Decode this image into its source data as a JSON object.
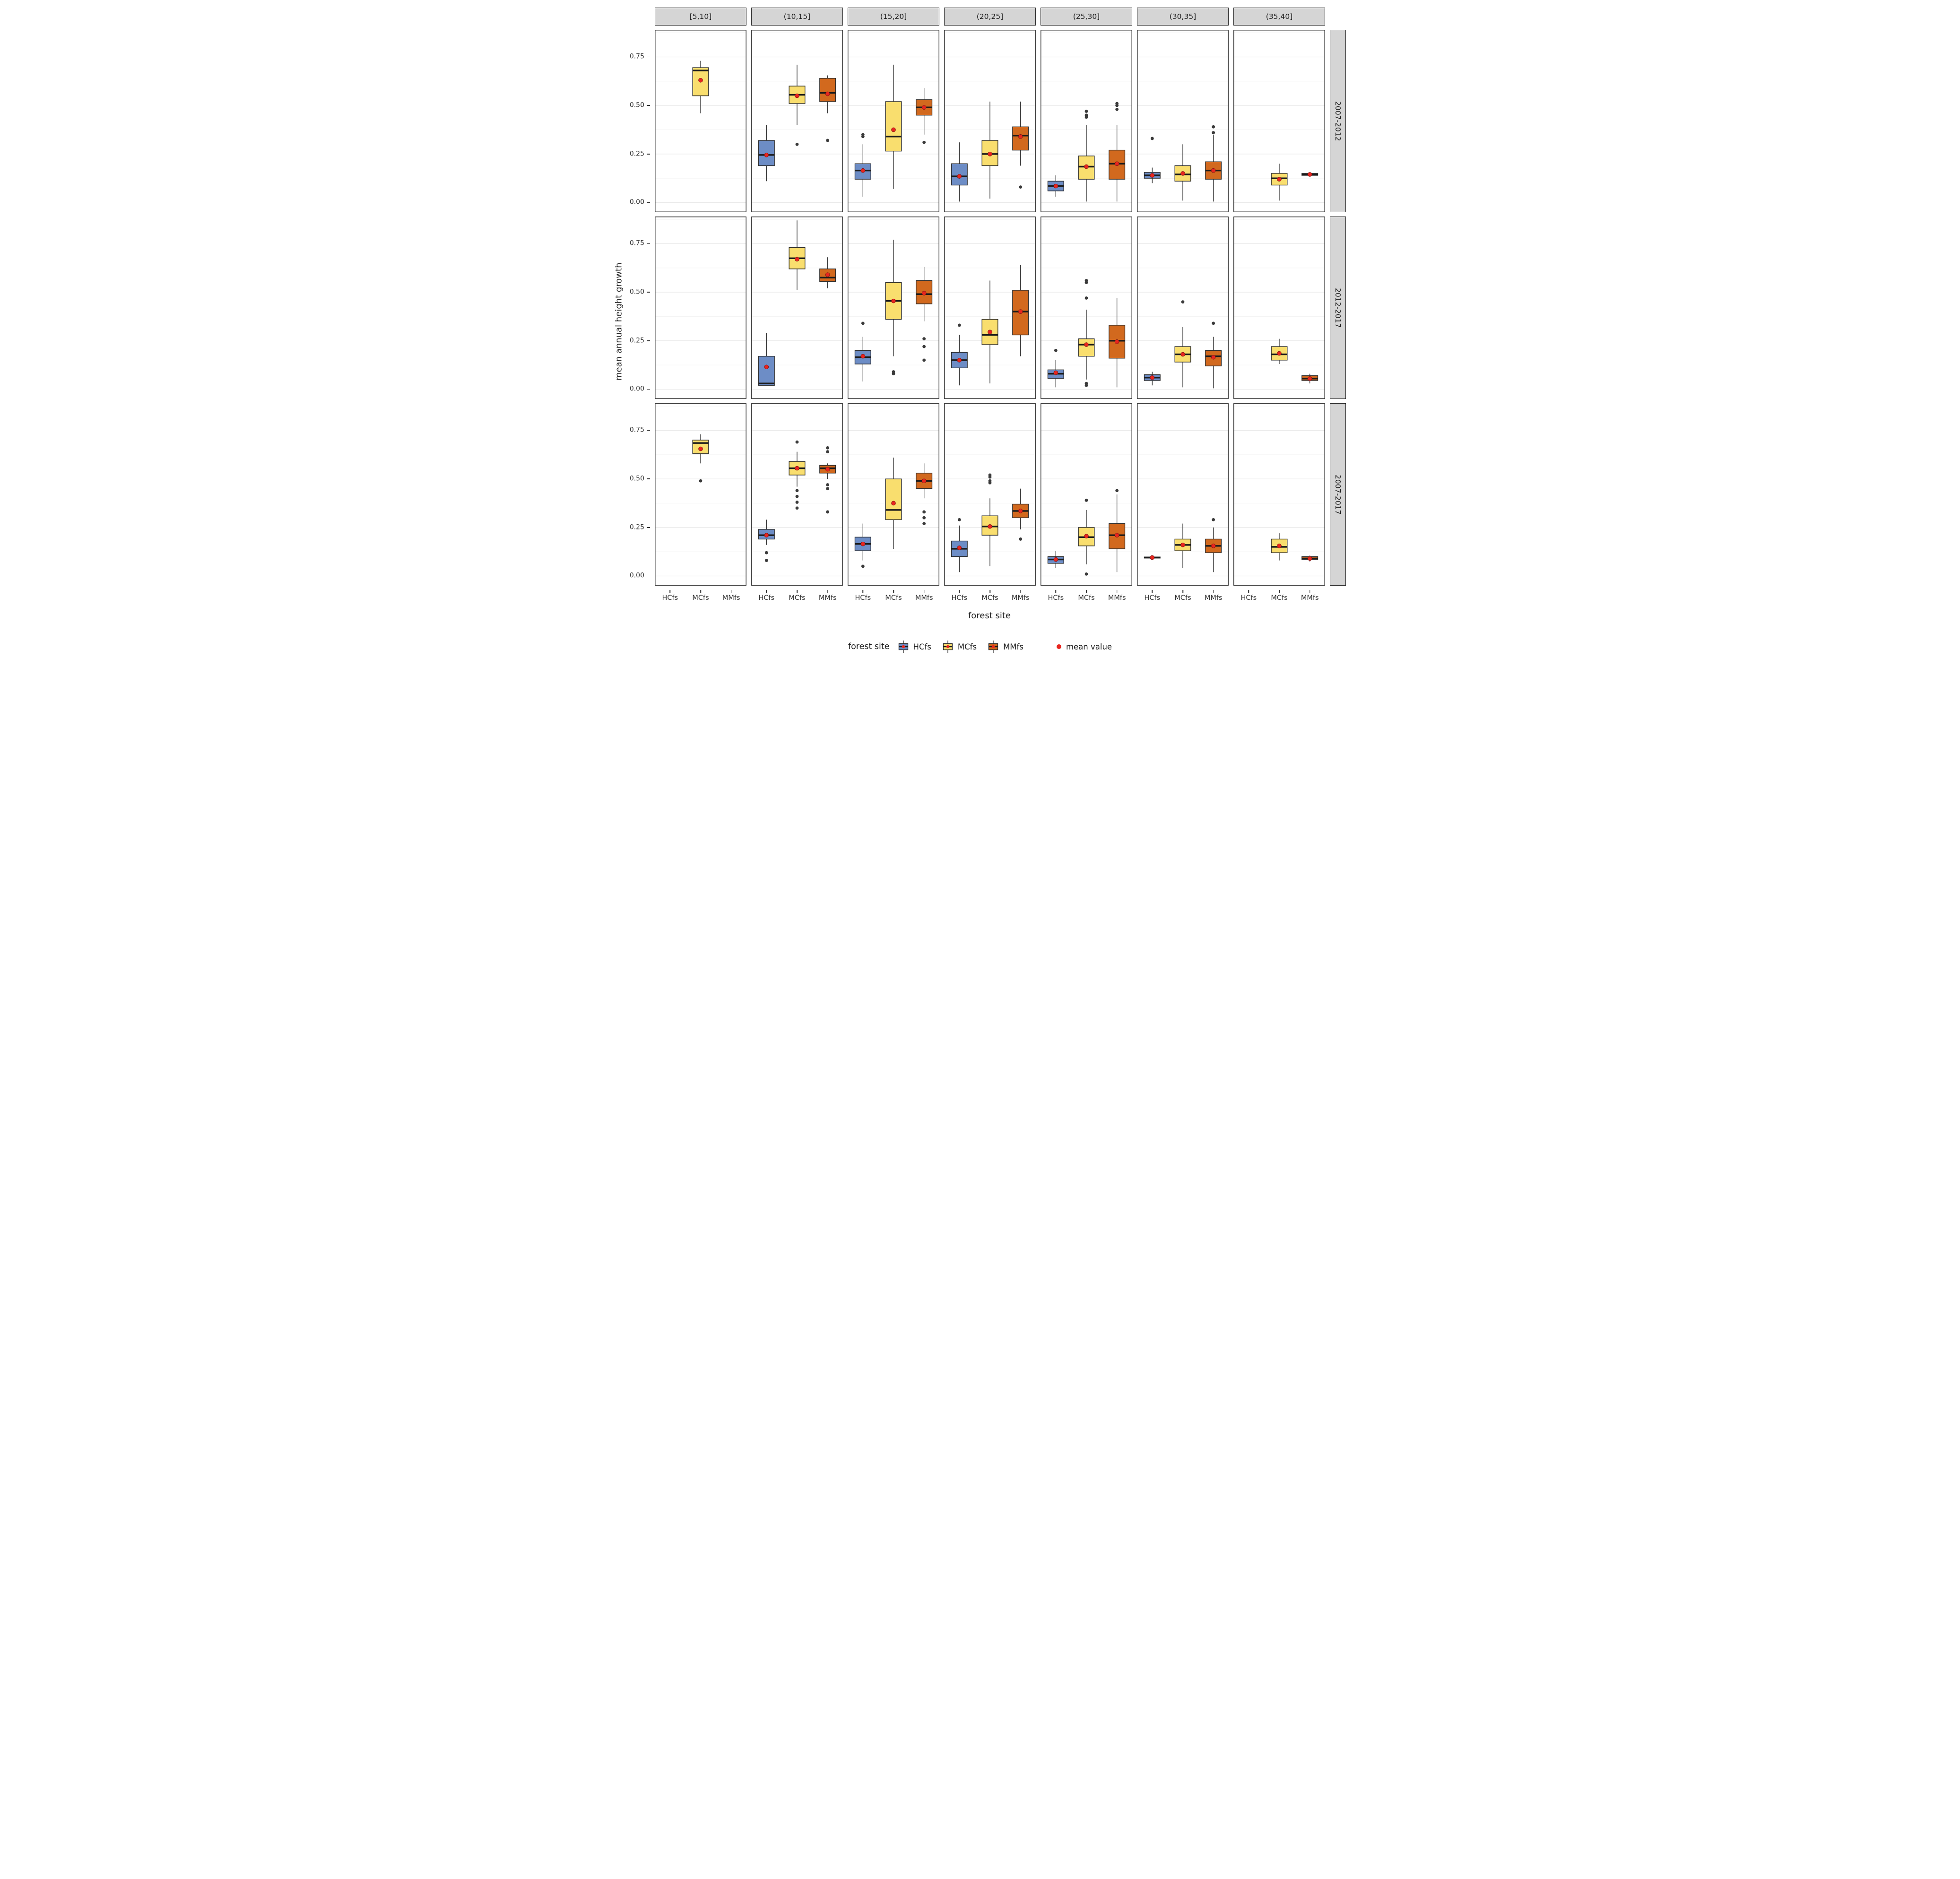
{
  "axes": {
    "y_label": "mean annual height growth",
    "x_label": "forest site",
    "y_ticks": [
      "0.00",
      "0.25",
      "0.50",
      "0.75"
    ],
    "x_categories": [
      "HCfs",
      "MCfs",
      "MMfs"
    ]
  },
  "facets": {
    "columns": [
      "[5,10]",
      "(10,15]",
      "(15,20]",
      "(20,25]",
      "(25,30]",
      "(30,35]",
      "(35,40]"
    ],
    "rows": [
      "2007-2012",
      "2012-2017",
      "2007-2017"
    ]
  },
  "legend": {
    "title": "forest site",
    "items": [
      {
        "label": "HCfs"
      },
      {
        "label": "MCfs"
      },
      {
        "label": "MMfs"
      }
    ],
    "mean_label": "mean value"
  },
  "colors": {
    "HCfs": "#6d8dc6",
    "MCfs": "#f9de6e",
    "MMfs": "#d2691e",
    "mean": "#e8251f",
    "outlier": "#3a3a3a",
    "strip_bg": "#d5d5d5",
    "panel_border": "#2b2b2b",
    "grid_major": "#e9e9e9",
    "grid_minor": "#f4f4f4"
  },
  "chart_data": {
    "type": "boxplot-facets",
    "y_domain": [
      -0.05,
      0.89
    ],
    "groups": [
      "HCfs",
      "MCfs",
      "MMfs"
    ],
    "panels": [
      {
        "row": 0,
        "col": 0,
        "boxes": [
          {
            "group": "MCfs",
            "low": 0.46,
            "q1": 0.55,
            "median": 0.68,
            "q3": 0.695,
            "high": 0.73,
            "mean": 0.63,
            "outliers": []
          }
        ]
      },
      {
        "row": 0,
        "col": 1,
        "boxes": [
          {
            "group": "HCfs",
            "low": 0.11,
            "q1": 0.19,
            "median": 0.245,
            "q3": 0.32,
            "high": 0.4,
            "mean": 0.245,
            "outliers": []
          },
          {
            "group": "MCfs",
            "low": 0.4,
            "q1": 0.51,
            "median": 0.555,
            "q3": 0.6,
            "high": 0.71,
            "mean": 0.55,
            "outliers": [
              0.3
            ]
          },
          {
            "group": "MMfs",
            "low": 0.46,
            "q1": 0.52,
            "median": 0.565,
            "q3": 0.64,
            "high": 0.655,
            "mean": 0.56,
            "outliers": [
              0.32
            ]
          }
        ]
      },
      {
        "row": 0,
        "col": 2,
        "boxes": [
          {
            "group": "HCfs",
            "low": 0.03,
            "q1": 0.12,
            "median": 0.165,
            "q3": 0.2,
            "high": 0.3,
            "mean": 0.165,
            "outliers": [
              0.35,
              0.34
            ]
          },
          {
            "group": "MCfs",
            "low": 0.07,
            "q1": 0.265,
            "median": 0.34,
            "q3": 0.52,
            "high": 0.71,
            "mean": 0.375,
            "outliers": []
          },
          {
            "group": "MMfs",
            "low": 0.35,
            "q1": 0.45,
            "median": 0.49,
            "q3": 0.53,
            "high": 0.59,
            "mean": 0.49,
            "outliers": [
              0.31
            ]
          }
        ]
      },
      {
        "row": 0,
        "col": 3,
        "boxes": [
          {
            "group": "HCfs",
            "low": 0.005,
            "q1": 0.09,
            "median": 0.135,
            "q3": 0.2,
            "high": 0.31,
            "mean": 0.135,
            "outliers": []
          },
          {
            "group": "MCfs",
            "low": 0.02,
            "q1": 0.19,
            "median": 0.25,
            "q3": 0.32,
            "high": 0.52,
            "mean": 0.25,
            "outliers": []
          },
          {
            "group": "MMfs",
            "low": 0.19,
            "q1": 0.27,
            "median": 0.345,
            "q3": 0.39,
            "high": 0.52,
            "mean": 0.34,
            "outliers": [
              0.08
            ]
          }
        ]
      },
      {
        "row": 0,
        "col": 4,
        "boxes": [
          {
            "group": "HCfs",
            "low": 0.03,
            "q1": 0.06,
            "median": 0.085,
            "q3": 0.11,
            "high": 0.14,
            "mean": 0.085,
            "outliers": []
          },
          {
            "group": "MCfs",
            "low": 0.005,
            "q1": 0.12,
            "median": 0.185,
            "q3": 0.24,
            "high": 0.4,
            "mean": 0.185,
            "outliers": [
              0.44,
              0.45,
              0.47
            ]
          },
          {
            "group": "MMfs",
            "low": 0.005,
            "q1": 0.12,
            "median": 0.2,
            "q3": 0.27,
            "high": 0.4,
            "mean": 0.2,
            "outliers": [
              0.48,
              0.5,
              0.51
            ]
          }
        ]
      },
      {
        "row": 0,
        "col": 5,
        "boxes": [
          {
            "group": "HCfs",
            "low": 0.1,
            "q1": 0.125,
            "median": 0.14,
            "q3": 0.155,
            "high": 0.18,
            "mean": 0.14,
            "outliers": [
              0.33
            ]
          },
          {
            "group": "MCfs",
            "low": 0.01,
            "q1": 0.11,
            "median": 0.145,
            "q3": 0.19,
            "high": 0.3,
            "mean": 0.15,
            "outliers": []
          },
          {
            "group": "MMfs",
            "low": 0.005,
            "q1": 0.12,
            "median": 0.165,
            "q3": 0.21,
            "high": 0.35,
            "mean": 0.165,
            "outliers": [
              0.36,
              0.39
            ]
          }
        ]
      },
      {
        "row": 0,
        "col": 6,
        "boxes": [
          {
            "group": "MCfs",
            "low": 0.01,
            "q1": 0.09,
            "median": 0.125,
            "q3": 0.15,
            "high": 0.2,
            "mean": 0.12,
            "outliers": []
          },
          {
            "group": "MMfs",
            "low": 0.135,
            "q1": 0.14,
            "median": 0.145,
            "q3": 0.15,
            "high": 0.155,
            "mean": 0.145,
            "outliers": []
          }
        ]
      },
      {
        "row": 1,
        "col": 0,
        "boxes": []
      },
      {
        "row": 1,
        "col": 1,
        "boxes": [
          {
            "group": "HCfs",
            "low": 0.02,
            "q1": 0.02,
            "median": 0.03,
            "q3": 0.17,
            "high": 0.29,
            "mean": 0.115,
            "outliers": []
          },
          {
            "group": "MCfs",
            "low": 0.51,
            "q1": 0.62,
            "median": 0.675,
            "q3": 0.73,
            "high": 0.87,
            "mean": 0.67,
            "outliers": []
          },
          {
            "group": "MMfs",
            "low": 0.52,
            "q1": 0.555,
            "median": 0.575,
            "q3": 0.62,
            "high": 0.68,
            "mean": 0.59,
            "outliers": []
          }
        ]
      },
      {
        "row": 1,
        "col": 2,
        "boxes": [
          {
            "group": "HCfs",
            "low": 0.04,
            "q1": 0.13,
            "median": 0.165,
            "q3": 0.2,
            "high": 0.27,
            "mean": 0.17,
            "outliers": [
              0.34
            ]
          },
          {
            "group": "MCfs",
            "low": 0.17,
            "q1": 0.36,
            "median": 0.455,
            "q3": 0.55,
            "high": 0.77,
            "mean": 0.455,
            "outliers": [
              0.09,
              0.08
            ]
          },
          {
            "group": "MMfs",
            "low": 0.35,
            "q1": 0.44,
            "median": 0.49,
            "q3": 0.56,
            "high": 0.63,
            "mean": 0.495,
            "outliers": [
              0.26,
              0.22,
              0.15
            ]
          }
        ]
      },
      {
        "row": 1,
        "col": 3,
        "boxes": [
          {
            "group": "HCfs",
            "low": 0.02,
            "q1": 0.11,
            "median": 0.15,
            "q3": 0.19,
            "high": 0.28,
            "mean": 0.15,
            "outliers": [
              0.33
            ]
          },
          {
            "group": "MCfs",
            "low": 0.03,
            "q1": 0.23,
            "median": 0.28,
            "q3": 0.36,
            "high": 0.56,
            "mean": 0.295,
            "outliers": []
          },
          {
            "group": "MMfs",
            "low": 0.17,
            "q1": 0.28,
            "median": 0.4,
            "q3": 0.51,
            "high": 0.64,
            "mean": 0.4,
            "outliers": []
          }
        ]
      },
      {
        "row": 1,
        "col": 4,
        "boxes": [
          {
            "group": "HCfs",
            "low": 0.01,
            "q1": 0.055,
            "median": 0.08,
            "q3": 0.1,
            "high": 0.15,
            "mean": 0.085,
            "outliers": [
              0.2
            ]
          },
          {
            "group": "MCfs",
            "low": 0.05,
            "q1": 0.17,
            "median": 0.23,
            "q3": 0.26,
            "high": 0.41,
            "mean": 0.23,
            "outliers": [
              0.56,
              0.55,
              0.47,
              0.03,
              0.02
            ]
          },
          {
            "group": "MMfs",
            "low": 0.01,
            "q1": 0.16,
            "median": 0.25,
            "q3": 0.33,
            "high": 0.47,
            "mean": 0.245,
            "outliers": []
          }
        ]
      },
      {
        "row": 1,
        "col": 5,
        "boxes": [
          {
            "group": "HCfs",
            "low": 0.02,
            "q1": 0.045,
            "median": 0.06,
            "q3": 0.075,
            "high": 0.09,
            "mean": 0.06,
            "outliers": []
          },
          {
            "group": "MCfs",
            "low": 0.01,
            "q1": 0.14,
            "median": 0.18,
            "q3": 0.22,
            "high": 0.32,
            "mean": 0.18,
            "outliers": [
              0.45
            ]
          },
          {
            "group": "MMfs",
            "low": 0.005,
            "q1": 0.12,
            "median": 0.17,
            "q3": 0.2,
            "high": 0.27,
            "mean": 0.165,
            "outliers": [
              0.34
            ]
          }
        ]
      },
      {
        "row": 1,
        "col": 6,
        "boxes": [
          {
            "group": "MCfs",
            "low": 0.13,
            "q1": 0.15,
            "median": 0.18,
            "q3": 0.22,
            "high": 0.26,
            "mean": 0.185,
            "outliers": []
          },
          {
            "group": "MMfs",
            "low": 0.03,
            "q1": 0.045,
            "median": 0.055,
            "q3": 0.07,
            "high": 0.08,
            "mean": 0.055,
            "outliers": []
          }
        ]
      },
      {
        "row": 2,
        "col": 0,
        "boxes": [
          {
            "group": "MCfs",
            "low": 0.58,
            "q1": 0.63,
            "median": 0.685,
            "q3": 0.7,
            "high": 0.73,
            "mean": 0.655,
            "outliers": [
              0.49
            ]
          }
        ]
      },
      {
        "row": 2,
        "col": 1,
        "boxes": [
          {
            "group": "HCfs",
            "low": 0.16,
            "q1": 0.19,
            "median": 0.21,
            "q3": 0.24,
            "high": 0.29,
            "mean": 0.21,
            "outliers": [
              0.12,
              0.08
            ]
          },
          {
            "group": "MCfs",
            "low": 0.46,
            "q1": 0.52,
            "median": 0.555,
            "q3": 0.59,
            "high": 0.64,
            "mean": 0.555,
            "outliers": [
              0.69,
              0.44,
              0.41,
              0.38,
              0.35
            ]
          },
          {
            "group": "MMfs",
            "low": 0.5,
            "q1": 0.53,
            "median": 0.555,
            "q3": 0.57,
            "high": 0.58,
            "mean": 0.55,
            "outliers": [
              0.66,
              0.64,
              0.47,
              0.45,
              0.33
            ]
          }
        ]
      },
      {
        "row": 2,
        "col": 2,
        "boxes": [
          {
            "group": "HCfs",
            "low": 0.08,
            "q1": 0.13,
            "median": 0.165,
            "q3": 0.2,
            "high": 0.27,
            "mean": 0.165,
            "outliers": [
              0.05
            ]
          },
          {
            "group": "MCfs",
            "low": 0.14,
            "q1": 0.29,
            "median": 0.34,
            "q3": 0.5,
            "high": 0.61,
            "mean": 0.375,
            "outliers": []
          },
          {
            "group": "MMfs",
            "low": 0.4,
            "q1": 0.45,
            "median": 0.49,
            "q3": 0.53,
            "high": 0.58,
            "mean": 0.49,
            "outliers": [
              0.33,
              0.3,
              0.27
            ]
          }
        ]
      },
      {
        "row": 2,
        "col": 3,
        "boxes": [
          {
            "group": "HCfs",
            "low": 0.02,
            "q1": 0.1,
            "median": 0.14,
            "q3": 0.18,
            "high": 0.26,
            "mean": 0.145,
            "outliers": [
              0.29
            ]
          },
          {
            "group": "MCfs",
            "low": 0.05,
            "q1": 0.21,
            "median": 0.255,
            "q3": 0.31,
            "high": 0.4,
            "mean": 0.255,
            "outliers": [
              0.52,
              0.51,
              0.49,
              0.48
            ]
          },
          {
            "group": "MMfs",
            "low": 0.24,
            "q1": 0.3,
            "median": 0.335,
            "q3": 0.37,
            "high": 0.45,
            "mean": 0.335,
            "outliers": [
              0.19
            ]
          }
        ]
      },
      {
        "row": 2,
        "col": 4,
        "boxes": [
          {
            "group": "HCfs",
            "low": 0.04,
            "q1": 0.065,
            "median": 0.085,
            "q3": 0.1,
            "high": 0.13,
            "mean": 0.085,
            "outliers": []
          },
          {
            "group": "MCfs",
            "low": 0.06,
            "q1": 0.155,
            "median": 0.2,
            "q3": 0.25,
            "high": 0.34,
            "mean": 0.205,
            "outliers": [
              0.39,
              0.01
            ]
          },
          {
            "group": "MMfs",
            "low": 0.02,
            "q1": 0.14,
            "median": 0.21,
            "q3": 0.27,
            "high": 0.42,
            "mean": 0.21,
            "outliers": [
              0.44
            ]
          }
        ]
      },
      {
        "row": 2,
        "col": 5,
        "boxes": [
          {
            "group": "HCfs",
            "low": 0.09,
            "q1": 0.092,
            "median": 0.095,
            "q3": 0.098,
            "high": 0.1,
            "mean": 0.095,
            "outliers": []
          },
          {
            "group": "MCfs",
            "low": 0.04,
            "q1": 0.13,
            "median": 0.16,
            "q3": 0.19,
            "high": 0.27,
            "mean": 0.16,
            "outliers": []
          },
          {
            "group": "MMfs",
            "low": 0.02,
            "q1": 0.12,
            "median": 0.155,
            "q3": 0.19,
            "high": 0.25,
            "mean": 0.155,
            "outliers": [
              0.29
            ]
          }
        ]
      },
      {
        "row": 2,
        "col": 6,
        "boxes": [
          {
            "group": "MCfs",
            "low": 0.08,
            "q1": 0.12,
            "median": 0.15,
            "q3": 0.19,
            "high": 0.22,
            "mean": 0.155,
            "outliers": []
          },
          {
            "group": "MMfs",
            "low": 0.075,
            "q1": 0.085,
            "median": 0.09,
            "q3": 0.1,
            "high": 0.105,
            "mean": 0.09,
            "outliers": []
          }
        ]
      }
    ]
  }
}
